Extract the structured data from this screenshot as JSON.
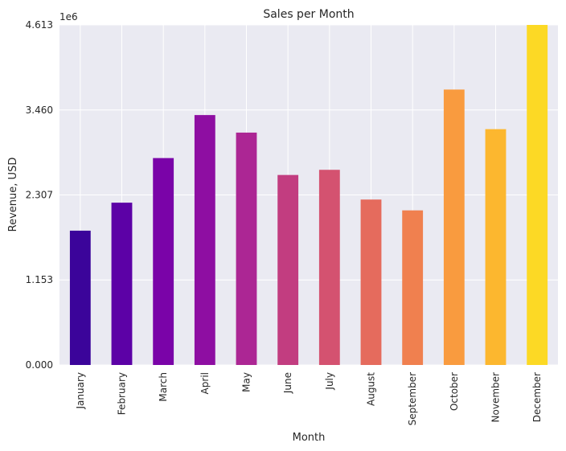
{
  "chart_data": {
    "type": "bar",
    "title": "Sales per Month",
    "xlabel": "Month",
    "ylabel": "Revenue, USD",
    "y_offset_label": "1e6",
    "categories": [
      "January",
      "February",
      "March",
      "April",
      "May",
      "June",
      "July",
      "August",
      "September",
      "October",
      "November",
      "December"
    ],
    "values": [
      1822092,
      2202022,
      2807100,
      3390670,
      3152607,
      2577802,
      2647776,
      2244468,
      2097560,
      3736727,
      3199603,
      4613443
    ],
    "ylim": [
      0,
      4613443
    ],
    "y_ticks": [
      "0.000",
      "1.153",
      "2.307",
      "3.460",
      "4.613"
    ],
    "y_tick_values": [
      0,
      1153361,
      2306722,
      3460082,
      4613443
    ],
    "colors": [
      "#3a049a",
      "#5c01a6",
      "#7e03a8",
      "#9c179e",
      "#b52f8c",
      "#cc4778",
      "#de5f65",
      "#ed7953",
      "#f89540",
      "#fdb42f",
      "#fbd524",
      "#f0f921"
    ],
    "bar_colors_observed": [
      "#3b049a",
      "#5c01a6",
      "#7a03a8",
      "#8e0ea2",
      "#ac2694",
      "#c23d80",
      "#d45270",
      "#e56b5d",
      "#f0804f",
      "#f99b3f",
      "#fcb72f",
      "#fcd925"
    ],
    "grid": true,
    "background": "#eaeaf2"
  }
}
